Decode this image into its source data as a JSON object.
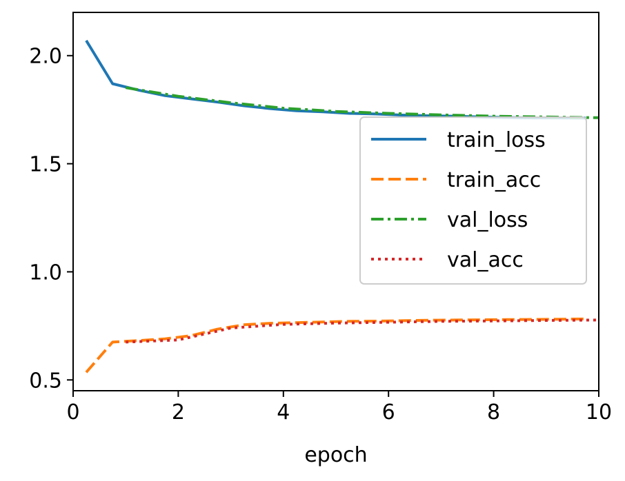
{
  "chart_data": {
    "type": "line",
    "title": "",
    "xlabel": "epoch",
    "ylabel": "",
    "xlim": [
      0,
      10
    ],
    "ylim": [
      0.45,
      2.2
    ],
    "xticks": [
      0,
      2,
      4,
      6,
      8,
      10
    ],
    "xtick_labels": [
      "0",
      "2",
      "4",
      "6",
      "8",
      "10"
    ],
    "yticks": [
      0.5,
      1.0,
      1.5,
      2.0
    ],
    "ytick_labels": [
      "0.5",
      "1.0",
      "1.5",
      "2.0"
    ],
    "grid": false,
    "legend_position": "center-right",
    "series": [
      {
        "name": "train_loss",
        "color": "#1f77b4",
        "style": "solid",
        "x": [
          0.25,
          0.75,
          1.25,
          1.75,
          2.25,
          2.75,
          3.25,
          3.75,
          4.25,
          4.75,
          5.25,
          5.75,
          6.25,
          6.75,
          7.25,
          7.75,
          8.25,
          8.75,
          9.25,
          9.75
        ],
        "y": [
          2.07,
          1.87,
          1.84,
          1.815,
          1.8,
          1.785,
          1.768,
          1.755,
          1.745,
          1.74,
          1.733,
          1.73,
          1.725,
          1.722,
          1.72,
          1.716,
          1.714,
          1.712,
          1.712,
          1.711
        ]
      },
      {
        "name": "train_acc",
        "color": "#ff7f0e",
        "style": "dashed",
        "x": [
          0.25,
          0.75,
          1.25,
          1.75,
          2.25,
          2.75,
          3.25,
          3.75,
          4.25,
          4.75,
          5.25,
          5.75,
          6.25,
          6.75,
          7.25,
          7.75,
          8.25,
          8.75,
          9.25,
          9.75
        ],
        "y": [
          0.535,
          0.675,
          0.682,
          0.69,
          0.705,
          0.735,
          0.755,
          0.762,
          0.765,
          0.768,
          0.771,
          0.772,
          0.774,
          0.776,
          0.777,
          0.778,
          0.779,
          0.78,
          0.781,
          0.782
        ]
      },
      {
        "name": "val_loss",
        "color": "#2ca02c",
        "style": "dashdot",
        "x": [
          1,
          2,
          3,
          4,
          5,
          6,
          7,
          8,
          9,
          10
        ],
        "y": [
          1.852,
          1.812,
          1.782,
          1.757,
          1.742,
          1.733,
          1.726,
          1.72,
          1.716,
          1.713
        ]
      },
      {
        "name": "val_acc",
        "color": "#d62728",
        "style": "dotted",
        "x": [
          1,
          2,
          3,
          4,
          5,
          6,
          7,
          8,
          9,
          10
        ],
        "y": [
          0.675,
          0.685,
          0.74,
          0.757,
          0.763,
          0.767,
          0.771,
          0.773,
          0.775,
          0.777
        ]
      }
    ]
  }
}
